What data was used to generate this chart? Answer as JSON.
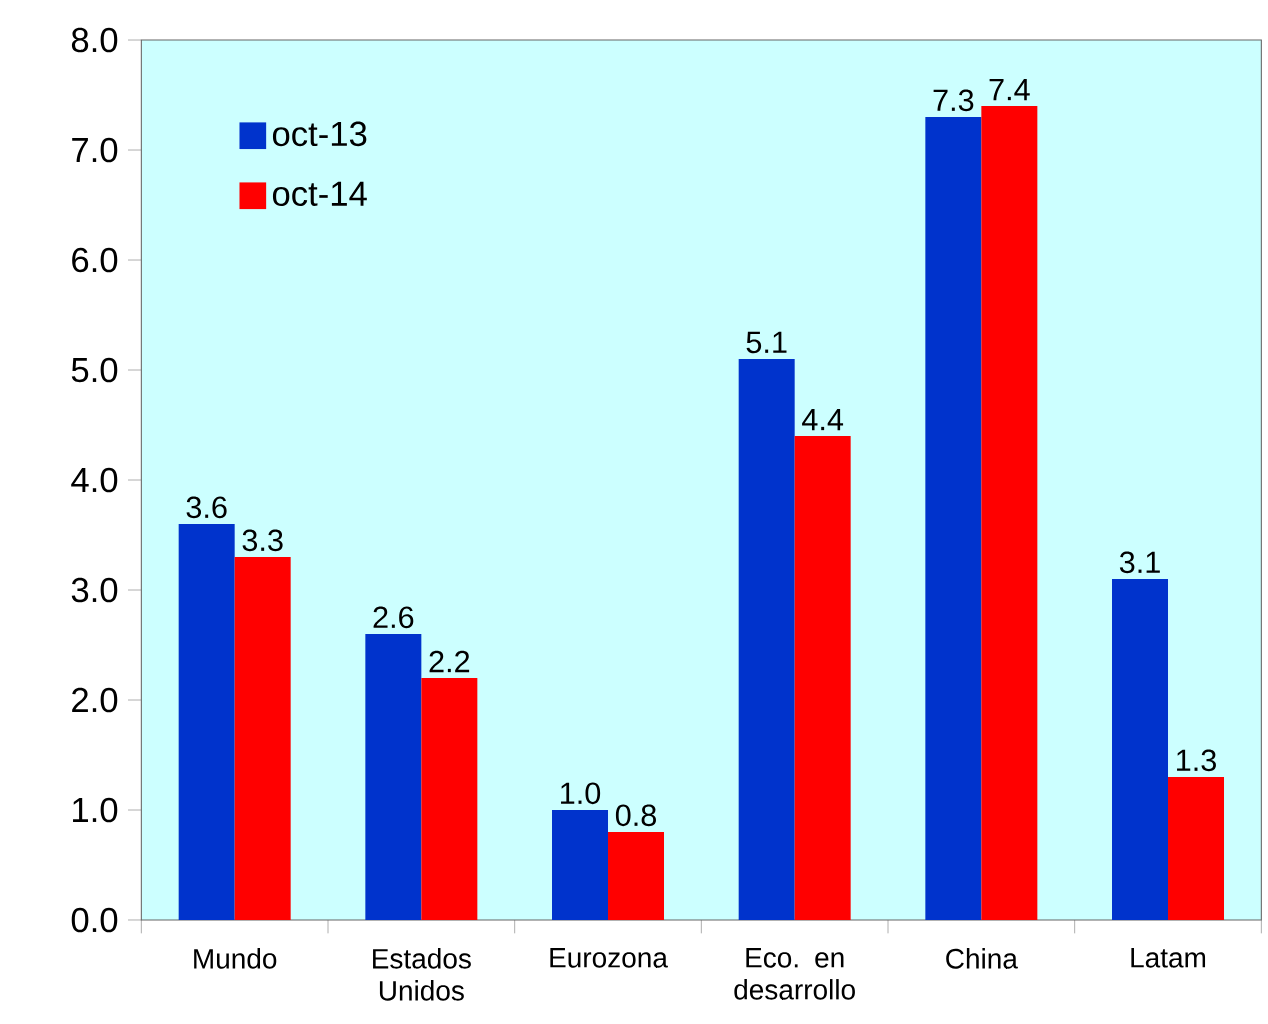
{
  "chart_data": {
    "type": "bar",
    "categories": [
      "Mundo",
      "Estados Unidos",
      "Eurozona",
      "Eco. en desarrollo",
      "China",
      "Latam"
    ],
    "series": [
      {
        "name": "oct-13",
        "color": "#0033cc",
        "values": [
          3.6,
          2.6,
          1.0,
          5.1,
          7.3,
          3.1
        ],
        "value_labels": [
          "3.6",
          "2.6",
          "1.0",
          "5.1",
          "7.3",
          "3.1"
        ]
      },
      {
        "name": "oct-14",
        "color": "#ff0000",
        "values": [
          3.3,
          2.2,
          0.8,
          4.4,
          7.4,
          1.3
        ],
        "value_labels": [
          "3.3",
          "2.2",
          "0.8",
          "4.4",
          "7.4",
          "1.3"
        ]
      }
    ],
    "ylim": [
      0,
      8
    ],
    "yticks": [
      {
        "value": 0,
        "label": "0.0"
      },
      {
        "value": 1,
        "label": "1.0"
      },
      {
        "value": 2,
        "label": "2.0"
      },
      {
        "value": 3,
        "label": "3.0"
      },
      {
        "value": 4,
        "label": "4.0"
      },
      {
        "value": 5,
        "label": "5.0"
      },
      {
        "value": 6,
        "label": "6.0"
      },
      {
        "value": 7,
        "label": "7.0"
      },
      {
        "value": 8,
        "label": "8.0"
      }
    ],
    "legend": "top left",
    "grid": false
  }
}
